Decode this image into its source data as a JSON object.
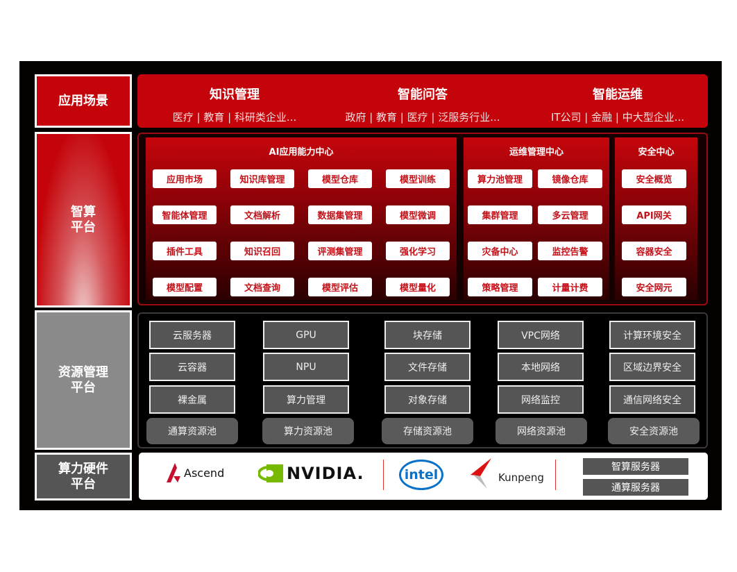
{
  "layers": {
    "scenario": "应用场景",
    "smart_platform": "智算\n平台",
    "resource_platform": "资源管理\n平台",
    "hardware_platform": "算力硬件\n平台"
  },
  "scenarios": [
    {
      "title": "知识管理",
      "sub": "医疗 | 教育 | 科研类企业..."
    },
    {
      "title": "智能问答",
      "sub": "政府 | 教育 | 医疗 | 泛服务行业..."
    },
    {
      "title": "智能运维",
      "sub": "IT公司 | 金融 | 中大型企业..."
    }
  ],
  "ai_center": {
    "title": "AI应用能力中心",
    "items": [
      "应用市场",
      "知识库管理",
      "模型仓库",
      "模型训练",
      "智能体管理",
      "文档解析",
      "数据集管理",
      "模型微调",
      "插件工具",
      "知识召回",
      "评测集管理",
      "强化学习",
      "模型配置",
      "文档查询",
      "模型评估",
      "模型量化"
    ]
  },
  "ops_center": {
    "title": "运维管理中心",
    "items": [
      "算力池管理",
      "镜像仓库",
      "集群管理",
      "多云管理",
      "灾备中心",
      "监控告警",
      "策略管理",
      "计量计费"
    ]
  },
  "security_center": {
    "title": "安全中心",
    "items": [
      "安全概览",
      "API网关",
      "容器安全",
      "安全网元"
    ]
  },
  "resources": [
    {
      "items": [
        "云服务器",
        "云容器",
        "裸金属"
      ],
      "pool": "通算资源池"
    },
    {
      "items": [
        "GPU",
        "NPU",
        "算力管理"
      ],
      "pool": "算力资源池"
    },
    {
      "items": [
        "块存储",
        "文件存储",
        "对象存储"
      ],
      "pool": "存储资源池"
    },
    {
      "items": [
        "VPC网络",
        "本地网络",
        "网络监控"
      ],
      "pool": "网络资源池"
    },
    {
      "items": [
        "计算环境安全",
        "区域边界安全",
        "通信网络安全"
      ],
      "pool": "安全资源池"
    }
  ],
  "hardware": {
    "logos": [
      "Ascend",
      "NVIDIA.",
      "intel",
      "Kunpeng"
    ],
    "servers": [
      "智算服务器",
      "通算服务器"
    ]
  },
  "colors": {
    "red": "#c4040a",
    "gray": "#555555",
    "black": "#050000"
  }
}
